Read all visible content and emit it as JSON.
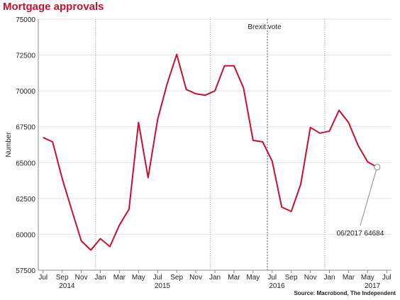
{
  "header": {
    "title": "Mortgage approvals"
  },
  "footer": {
    "source": "Source: Macrobond, The Independent"
  },
  "chart_data": {
    "type": "line",
    "title": "Mortgage approvals",
    "xlabel": "",
    "ylabel": "Number",
    "ylim": [
      57500,
      75000
    ],
    "yticks": [
      57500,
      60000,
      62500,
      65000,
      67500,
      70000,
      72500,
      75000
    ],
    "ytick_labels": [
      "57500",
      "60000",
      "62500",
      "65000",
      "67500",
      "70000",
      "72500",
      "75000"
    ],
    "x_month_ticks": [
      {
        "idx": 0,
        "label": "Jul"
      },
      {
        "idx": 2,
        "label": "Sep"
      },
      {
        "idx": 4,
        "label": "Nov"
      },
      {
        "idx": 6,
        "label": "Jan"
      },
      {
        "idx": 8,
        "label": "Mar"
      },
      {
        "idx": 10,
        "label": "May"
      },
      {
        "idx": 12,
        "label": "Jul"
      },
      {
        "idx": 14,
        "label": "Sep"
      },
      {
        "idx": 16,
        "label": "Nov"
      },
      {
        "idx": 18,
        "label": "Jan"
      },
      {
        "idx": 20,
        "label": "Mar"
      },
      {
        "idx": 22,
        "label": "May"
      },
      {
        "idx": 24,
        "label": "Jul"
      },
      {
        "idx": 26,
        "label": "Sep"
      },
      {
        "idx": 28,
        "label": "Nov"
      },
      {
        "idx": 30,
        "label": "Jan"
      },
      {
        "idx": 32,
        "label": "Mar"
      },
      {
        "idx": 34,
        "label": "May"
      },
      {
        "idx": 36,
        "label": "Jul"
      }
    ],
    "x_year_ticks": [
      {
        "idx": 2.5,
        "label": "2014"
      },
      {
        "idx": 12.5,
        "label": "2015"
      },
      {
        "idx": 24.5,
        "label": "2016"
      },
      {
        "idx": 34.5,
        "label": "2017"
      }
    ],
    "year_boundaries": [
      5.5,
      17.5,
      29.5
    ],
    "x": [
      "07/2014",
      "08/2014",
      "09/2014",
      "10/2014",
      "11/2014",
      "12/2014",
      "01/2015",
      "02/2015",
      "03/2015",
      "04/2015",
      "05/2015",
      "06/2015",
      "07/2015",
      "08/2015",
      "09/2015",
      "10/2015",
      "11/2015",
      "12/2015",
      "01/2016",
      "02/2016",
      "03/2016",
      "04/2016",
      "05/2016",
      "06/2016",
      "07/2016",
      "08/2016",
      "09/2016",
      "10/2016",
      "11/2016",
      "12/2016",
      "01/2017",
      "02/2017",
      "03/2017",
      "04/2017",
      "05/2017",
      "06/2017"
    ],
    "series": [
      {
        "color": "#c8102e",
        "values": [
          66750,
          66450,
          63900,
          61700,
          59550,
          58900,
          59700,
          59150,
          60650,
          61750,
          67800,
          63950,
          68000,
          70500,
          72550,
          70100,
          69800,
          69700,
          70000,
          71750,
          71750,
          70200,
          66550,
          66450,
          65100,
          61900,
          61600,
          63500,
          67450,
          67050,
          67200,
          68650,
          67800,
          66200,
          65050,
          64684
        ]
      }
    ],
    "event_line": {
      "idx": 23.5,
      "label": "Brexit vote"
    },
    "annotation": {
      "idx": 35,
      "value": 64684,
      "label": "06/2017 64684"
    }
  }
}
